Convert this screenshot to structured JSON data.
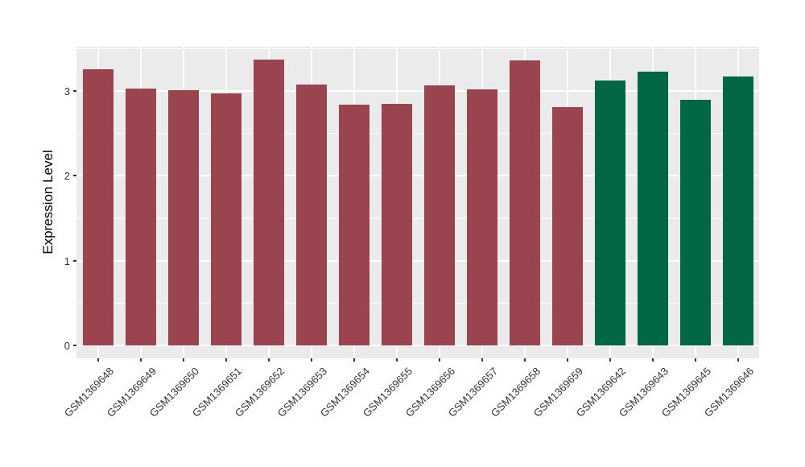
{
  "chart_data": {
    "type": "bar",
    "title": "",
    "xlabel": "",
    "ylabel": "Expression Level",
    "categories": [
      "GSM1369648",
      "GSM1369649",
      "GSM1369650",
      "GSM1369651",
      "GSM1369652",
      "GSM1369653",
      "GSM1369654",
      "GSM1369655",
      "GSM1369656",
      "GSM1369657",
      "GSM1369658",
      "GSM1369659",
      "GSM1369642",
      "GSM1369643",
      "GSM1369645",
      "GSM1369646"
    ],
    "values": [
      3.26,
      3.03,
      3.01,
      2.97,
      3.37,
      3.08,
      2.84,
      2.85,
      3.07,
      3.02,
      3.36,
      2.81,
      3.12,
      3.23,
      2.9,
      3.17
    ],
    "groups": [
      "maroon",
      "maroon",
      "maroon",
      "maroon",
      "maroon",
      "maroon",
      "maroon",
      "maroon",
      "maroon",
      "maroon",
      "maroon",
      "maroon",
      "green",
      "green",
      "green",
      "green"
    ],
    "group_colors": {
      "maroon": "#9A4450",
      "green": "#016747"
    },
    "y_ticks": [
      0,
      1,
      2,
      3
    ],
    "y_tick_labels": [
      "0",
      "1",
      "2",
      "3"
    ],
    "y_minor_ticks": [
      0.5,
      1.5,
      2.5,
      3.5
    ],
    "ylim": [
      -0.15,
      3.52
    ],
    "panel_bg": "#EBEBEB",
    "grid_color": "#FFFFFF",
    "legend_position": "none",
    "x_label_angle_deg": 45
  }
}
